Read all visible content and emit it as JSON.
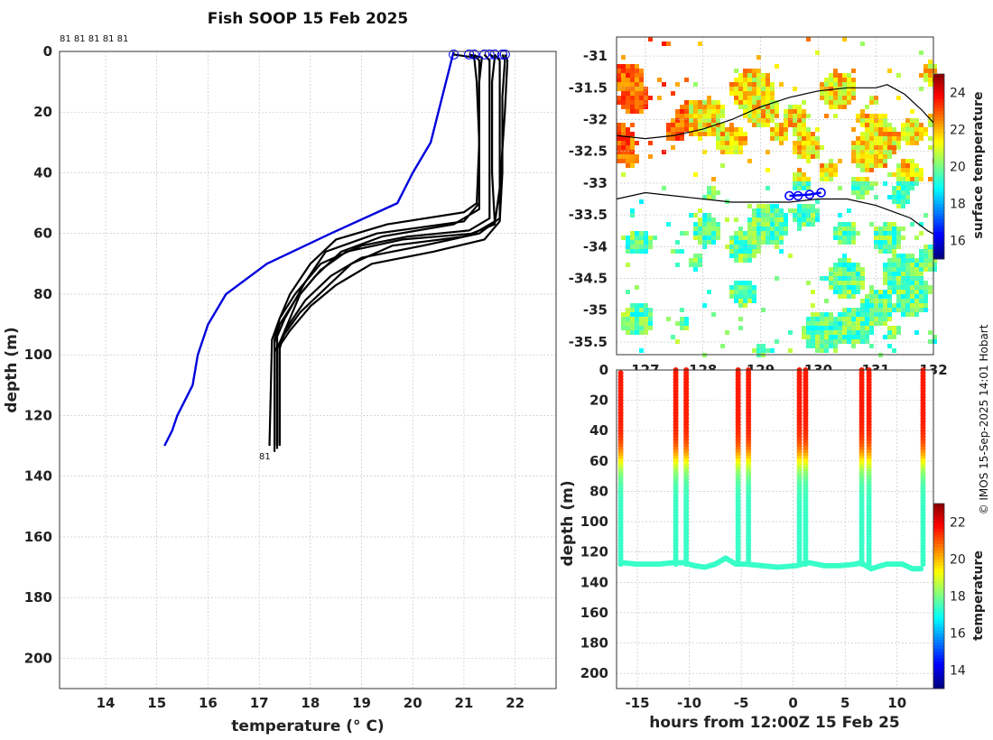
{
  "page": {
    "title": "Fish SOOP 15 Feb 2025",
    "credit": "© IMOS 15-Sep-2025 14:01 Hobart"
  },
  "colors": {
    "mean_profile": "#0000dd",
    "profiles": "#000000",
    "coast": "#000000",
    "track": "#0000ff"
  },
  "chart_data": [
    {
      "name": "profiles",
      "type": "line",
      "xlabel": "temperature (° C)",
      "ylabel": "depth (m)",
      "xlim": [
        13.1,
        22.8
      ],
      "ylim": [
        210,
        0
      ],
      "xticks": [
        14,
        15,
        16,
        17,
        18,
        19,
        20,
        21,
        22
      ],
      "yticks": [
        0,
        20,
        40,
        60,
        80,
        100,
        120,
        140,
        160,
        180,
        200
      ],
      "grid": true,
      "top_labels": "81 81 81 81 81",
      "bottom_label": "81",
      "series": [
        {
          "role": "reference",
          "color": "#0000dd",
          "points": [
            [
              20.8,
              0
            ],
            [
              20.65,
              10
            ],
            [
              20.5,
              20
            ],
            [
              20.35,
              30
            ],
            [
              20.0,
              40
            ],
            [
              19.7,
              50
            ],
            [
              18.4,
              60
            ],
            [
              17.15,
              70
            ],
            [
              16.35,
              80
            ],
            [
              16.0,
              90
            ],
            [
              15.8,
              100
            ],
            [
              15.7,
              110
            ],
            [
              15.4,
              120
            ],
            [
              15.3,
              125
            ],
            [
              15.15,
              130
            ]
          ]
        },
        {
          "role": "profile",
          "points": [
            [
              20.8,
              1
            ],
            [
              21.2,
              2
            ],
            [
              21.25,
              10
            ],
            [
              21.3,
              30
            ],
            [
              21.25,
              50
            ],
            [
              21.0,
              53
            ],
            [
              19.5,
              57
            ],
            [
              18.5,
              62
            ],
            [
              18.0,
              70
            ],
            [
              17.6,
              80
            ],
            [
              17.4,
              88
            ],
            [
              17.3,
              95
            ],
            [
              17.3,
              110
            ],
            [
              17.3,
              130
            ]
          ]
        },
        {
          "role": "profile",
          "points": [
            [
              21.1,
              1
            ],
            [
              21.35,
              2
            ],
            [
              21.3,
              10
            ],
            [
              21.3,
              30
            ],
            [
              21.3,
              50
            ],
            [
              21.0,
              56
            ],
            [
              19.3,
              60
            ],
            [
              18.3,
              66
            ],
            [
              17.9,
              76
            ],
            [
              17.5,
              88
            ],
            [
              17.35,
              94
            ],
            [
              17.35,
              110
            ],
            [
              17.35,
              131
            ]
          ]
        },
        {
          "role": "profile",
          "points": [
            [
              21.5,
              1
            ],
            [
              21.6,
              2
            ],
            [
              21.55,
              10
            ],
            [
              21.55,
              40
            ],
            [
              21.6,
              56
            ],
            [
              21.2,
              60
            ],
            [
              19.8,
              62
            ],
            [
              18.7,
              66
            ],
            [
              18.2,
              72
            ],
            [
              17.8,
              80
            ],
            [
              17.5,
              92
            ],
            [
              17.4,
              98
            ],
            [
              17.4,
              130
            ]
          ]
        },
        {
          "role": "profile",
          "points": [
            [
              21.6,
              1
            ],
            [
              21.7,
              3
            ],
            [
              21.7,
              10
            ],
            [
              21.7,
              40
            ],
            [
              21.7,
              55
            ],
            [
              21.3,
              60
            ],
            [
              20.2,
              64
            ],
            [
              19.0,
              68
            ],
            [
              18.4,
              74
            ],
            [
              17.9,
              82
            ],
            [
              17.5,
              92
            ],
            [
              17.35,
              98
            ],
            [
              17.35,
              130
            ]
          ]
        },
        {
          "role": "profile",
          "points": [
            [
              21.75,
              1
            ],
            [
              21.8,
              3
            ],
            [
              21.75,
              15
            ],
            [
              21.75,
              40
            ],
            [
              21.7,
              56
            ],
            [
              21.4,
              62
            ],
            [
              20.4,
              66
            ],
            [
              19.2,
              70
            ],
            [
              18.5,
              77
            ],
            [
              18.0,
              84
            ],
            [
              17.6,
              92
            ],
            [
              17.4,
              97
            ],
            [
              17.4,
              129
            ]
          ]
        },
        {
          "role": "profile",
          "points": [
            [
              21.2,
              1
            ],
            [
              21.3,
              3
            ],
            [
              21.3,
              20
            ],
            [
              21.3,
              40
            ],
            [
              21.3,
              52
            ],
            [
              20.8,
              57
            ],
            [
              19.4,
              61
            ],
            [
              18.6,
              66
            ],
            [
              18.1,
              74
            ],
            [
              17.7,
              82
            ],
            [
              17.4,
              90
            ],
            [
              17.3,
              96
            ],
            [
              17.3,
              128
            ]
          ]
        },
        {
          "role": "profile",
          "points": [
            [
              21.8,
              1
            ],
            [
              21.85,
              3
            ],
            [
              21.8,
              20
            ],
            [
              21.7,
              45
            ],
            [
              21.6,
              57
            ],
            [
              21.0,
              61
            ],
            [
              19.6,
              64
            ],
            [
              18.8,
              70
            ],
            [
              18.3,
              78
            ],
            [
              17.8,
              86
            ],
            [
              17.5,
              93
            ],
            [
              17.3,
              99
            ],
            [
              17.3,
              132
            ]
          ]
        },
        {
          "role": "profile",
          "points": [
            [
              21.4,
              1
            ],
            [
              21.5,
              3
            ],
            [
              21.5,
              20
            ],
            [
              21.5,
              45
            ],
            [
              21.5,
              55
            ],
            [
              21.1,
              59
            ],
            [
              19.9,
              61
            ],
            [
              19.0,
              64
            ],
            [
              18.2,
              70
            ],
            [
              17.7,
              80
            ],
            [
              17.4,
              88
            ],
            [
              17.25,
              95
            ],
            [
              17.2,
              130
            ]
          ]
        }
      ]
    },
    {
      "name": "surface_map",
      "type": "heatmap",
      "colorbar_label": "surface temperature",
      "colorbar_range": [
        15,
        25
      ],
      "colorbar_ticks": [
        16,
        18,
        20,
        22,
        24
      ],
      "xlim": [
        126.5,
        132
      ],
      "ylim": [
        -35.7,
        -30.7
      ],
      "xticks": [
        127,
        128,
        129,
        130,
        131,
        132
      ],
      "xtick_labels": [
        "127",
        "128",
        "129",
        "130",
        "131",
        "132"
      ],
      "yticks": [
        -31,
        -31.5,
        -32,
        -32.5,
        -33,
        -33.5,
        -34,
        -34.5,
        -35,
        -35.5
      ],
      "grid": true,
      "coast_north": [
        [
          126.5,
          -32.25
        ],
        [
          127.0,
          -32.3
        ],
        [
          127.5,
          -32.25
        ],
        [
          128.0,
          -32.15
        ],
        [
          128.5,
          -32.0
        ],
        [
          129.0,
          -31.8
        ],
        [
          129.5,
          -31.65
        ],
        [
          130.0,
          -31.55
        ],
        [
          130.5,
          -31.5
        ],
        [
          131.0,
          -31.5
        ],
        [
          131.2,
          -31.45
        ],
        [
          131.5,
          -31.6
        ],
        [
          131.8,
          -31.85
        ],
        [
          132.0,
          -32.05
        ]
      ],
      "coast_south": [
        [
          126.5,
          -33.25
        ],
        [
          127.0,
          -33.15
        ],
        [
          127.5,
          -33.2
        ],
        [
          128.0,
          -33.25
        ],
        [
          128.5,
          -33.3
        ],
        [
          129.0,
          -33.3
        ],
        [
          129.5,
          -33.3
        ],
        [
          130.0,
          -33.25
        ],
        [
          130.5,
          -33.25
        ],
        [
          131.0,
          -33.35
        ],
        [
          131.3,
          -33.45
        ],
        [
          131.6,
          -33.55
        ],
        [
          131.9,
          -33.75
        ],
        [
          132.0,
          -33.8
        ]
      ],
      "track": [
        [
          129.5,
          -33.2
        ],
        [
          129.85,
          -33.18
        ],
        [
          130.05,
          -33.15
        ]
      ],
      "track_markers": [
        [
          129.5,
          -33.2
        ],
        [
          129.65,
          -33.2
        ],
        [
          129.85,
          -33.18
        ],
        [
          130.05,
          -33.15
        ]
      ]
    },
    {
      "name": "depth_time",
      "type": "scatter",
      "xlabel": "hours from 12:00Z 15 Feb 25",
      "ylabel": "depth (m)",
      "colorbar_label": "temperature",
      "colorbar_range": [
        13,
        23
      ],
      "colorbar_ticks": [
        14,
        16,
        18,
        20,
        22
      ],
      "xlim": [
        -17,
        13.5
      ],
      "ylim": [
        210,
        0
      ],
      "xticks": [
        -15,
        -10,
        -5,
        0,
        5,
        10
      ],
      "yticks": [
        0,
        20,
        40,
        60,
        80,
        100,
        120,
        140,
        160,
        180,
        200
      ],
      "surface_temperature": 21.5,
      "bottom_temperature": 17.3,
      "thermocline_depth": 60,
      "spikes": [
        {
          "x": -16.6,
          "top": 2
        },
        {
          "x": -11.3,
          "top": 0
        },
        {
          "x": -10.3,
          "top": 0
        },
        {
          "x": -5.3,
          "top": 0
        },
        {
          "x": -4.3,
          "top": 0
        },
        {
          "x": 0.6,
          "top": 0
        },
        {
          "x": 1.2,
          "top": 0
        },
        {
          "x": 6.6,
          "top": 0
        },
        {
          "x": 7.3,
          "top": 0
        },
        {
          "x": 12.5,
          "top": 0
        }
      ],
      "bottom_track": [
        [
          -16.5,
          127
        ],
        [
          -15,
          128
        ],
        [
          -13,
          128
        ],
        [
          -11.5,
          127
        ],
        [
          -10.5,
          127
        ],
        [
          -9.5,
          129
        ],
        [
          -8.5,
          130
        ],
        [
          -7.5,
          128
        ],
        [
          -6.5,
          124
        ],
        [
          -5.5,
          128
        ],
        [
          -4.5,
          128
        ],
        [
          -3,
          129
        ],
        [
          -1.5,
          130
        ],
        [
          0.3,
          129
        ],
        [
          1.5,
          127
        ],
        [
          3,
          129
        ],
        [
          4.5,
          129
        ],
        [
          6,
          128
        ],
        [
          6.5,
          127
        ],
        [
          7.5,
          131
        ],
        [
          9,
          128
        ],
        [
          10.5,
          128
        ],
        [
          11.5,
          131
        ],
        [
          12.3,
          131
        ]
      ]
    }
  ]
}
